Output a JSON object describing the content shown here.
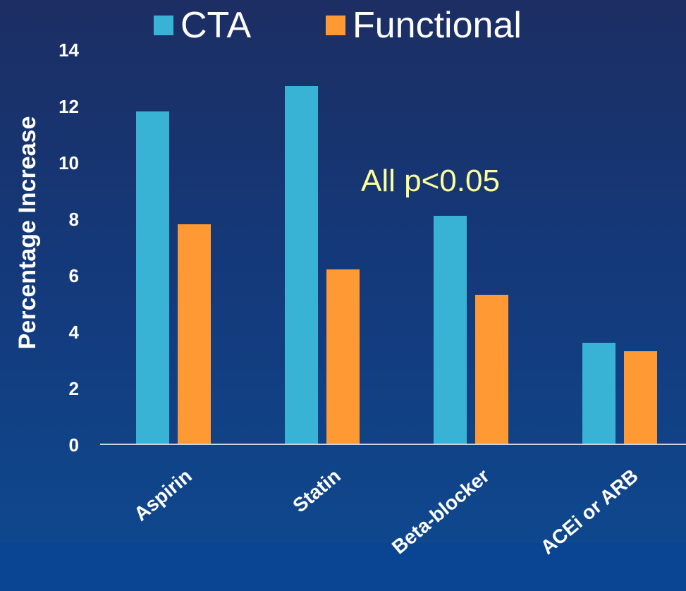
{
  "colors": {
    "cta": "#38b3d6",
    "functional": "#ff9933",
    "text": "#ffffff",
    "annotation": "#ffff99"
  },
  "annotation": "All p<0.05",
  "chart_data": {
    "type": "bar",
    "title": "",
    "xlabel": "",
    "ylabel": "Percentage Increase",
    "ylim": [
      0,
      14
    ],
    "yticks": [
      "0",
      "2",
      "4",
      "6",
      "8",
      "10",
      "12",
      "14"
    ],
    "categories": [
      "Aspirin",
      "Statin",
      "Beta-blocker",
      "ACEi or ARB"
    ],
    "series": [
      {
        "name": "CTA",
        "values": [
          11.8,
          12.7,
          8.1,
          3.6
        ]
      },
      {
        "name": "Functional",
        "values": [
          7.8,
          6.2,
          5.3,
          3.3
        ]
      }
    ],
    "legend": "top",
    "grid": false
  }
}
